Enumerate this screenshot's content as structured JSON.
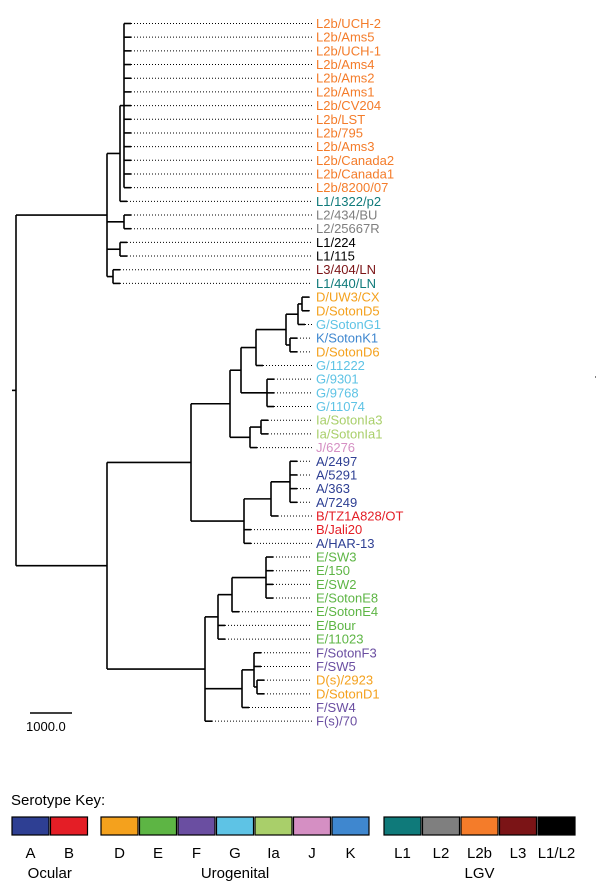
{
  "colors": {
    "A": "#2e3f93",
    "B": "#e41e26",
    "D": "#f4a11d",
    "E": "#5db544",
    "F": "#6a4ea1",
    "G": "#5ec3e5",
    "Ia": "#a9cf6a",
    "J": "#d58fc3",
    "K": "#3f87cf",
    "L1": "#0f7a7a",
    "L2": "#7f7f7f",
    "L2b": "#f47c2a",
    "L3": "#7b1416",
    "L1/L2": "#000000"
  },
  "tree": {
    "leaves": [
      {
        "label": "L2b/UCH-2",
        "serotype": "L2b"
      },
      {
        "label": "L2b/Ams5",
        "serotype": "L2b"
      },
      {
        "label": "L2b/UCH-1",
        "serotype": "L2b"
      },
      {
        "label": "L2b/Ams4",
        "serotype": "L2b"
      },
      {
        "label": "L2b/Ams2",
        "serotype": "L2b"
      },
      {
        "label": "L2b/Ams1",
        "serotype": "L2b"
      },
      {
        "label": "L2b/CV204",
        "serotype": "L2b"
      },
      {
        "label": "L2b/LST",
        "serotype": "L2b"
      },
      {
        "label": "L2b/795",
        "serotype": "L2b"
      },
      {
        "label": "L2b/Ams3",
        "serotype": "L2b"
      },
      {
        "label": "L2b/Canada2",
        "serotype": "L2b"
      },
      {
        "label": "L2b/Canada1",
        "serotype": "L2b"
      },
      {
        "label": "L2b/8200/07",
        "serotype": "L2b"
      },
      {
        "label": "L1/1322/p2",
        "serotype": "L1"
      },
      {
        "label": "L2/434/BU",
        "serotype": "L2"
      },
      {
        "label": "L2/25667R",
        "serotype": "L2"
      },
      {
        "label": "L1/224",
        "serotype": "L1/L2"
      },
      {
        "label": "L1/115",
        "serotype": "L1/L2"
      },
      {
        "label": "L3/404/LN",
        "serotype": "L3"
      },
      {
        "label": "L1/440/LN",
        "serotype": "L1"
      },
      {
        "label": "D/UW3/CX",
        "serotype": "D"
      },
      {
        "label": "D/SotonD5",
        "serotype": "D"
      },
      {
        "label": "G/SotonG1",
        "serotype": "G"
      },
      {
        "label": "K/SotonK1",
        "serotype": "K"
      },
      {
        "label": "D/SotonD6",
        "serotype": "D"
      },
      {
        "label": "G/11222",
        "serotype": "G"
      },
      {
        "label": "G/9301",
        "serotype": "G"
      },
      {
        "label": "G/9768",
        "serotype": "G"
      },
      {
        "label": "G/11074",
        "serotype": "G"
      },
      {
        "label": "Ia/SotonIa3",
        "serotype": "Ia"
      },
      {
        "label": "Ia/SotonIa1",
        "serotype": "Ia"
      },
      {
        "label": "J/6276",
        "serotype": "J"
      },
      {
        "label": "A/2497",
        "serotype": "A"
      },
      {
        "label": "A/5291",
        "serotype": "A"
      },
      {
        "label": "A/363",
        "serotype": "A"
      },
      {
        "label": "A/7249",
        "serotype": "A"
      },
      {
        "label": "B/TZ1A828/OT",
        "serotype": "B"
      },
      {
        "label": "B/Jali20",
        "serotype": "B"
      },
      {
        "label": "A/HAR-13",
        "serotype": "A"
      },
      {
        "label": "E/SW3",
        "serotype": "E"
      },
      {
        "label": "E/150",
        "serotype": "E"
      },
      {
        "label": "E/SW2",
        "serotype": "E"
      },
      {
        "label": "E/SotonE8",
        "serotype": "E"
      },
      {
        "label": "E/SotonE4",
        "serotype": "E"
      },
      {
        "label": "E/Bour",
        "serotype": "E"
      },
      {
        "label": "E/11023",
        "serotype": "E"
      },
      {
        "label": "F/SotonF3",
        "serotype": "F"
      },
      {
        "label": "F/SW5",
        "serotype": "F"
      },
      {
        "label": "D(s)/2923",
        "serotype": "D"
      },
      {
        "label": "D/SotonD1",
        "serotype": "D"
      },
      {
        "label": "F/SW4",
        "serotype": "F"
      },
      {
        "label": "F(s)/70",
        "serotype": "F"
      }
    ],
    "scale_bar_label": "1000.0"
  },
  "serotype_key": {
    "title": "Serotype Key:",
    "items": [
      {
        "letter": "A",
        "serotype": "A"
      },
      {
        "letter": "B",
        "serotype": "B"
      },
      {
        "letter": "D",
        "serotype": "D"
      },
      {
        "letter": "E",
        "serotype": "E"
      },
      {
        "letter": "F",
        "serotype": "F"
      },
      {
        "letter": "G",
        "serotype": "G"
      },
      {
        "letter": "Ia",
        "serotype": "Ia"
      },
      {
        "letter": "J",
        "serotype": "J"
      },
      {
        "letter": "K",
        "serotype": "K"
      },
      {
        "letter": "L1",
        "serotype": "L1"
      },
      {
        "letter": "L2",
        "serotype": "L2"
      },
      {
        "letter": "L2b",
        "serotype": "L2b"
      },
      {
        "letter": "L3",
        "serotype": "L3"
      },
      {
        "letter": "L1/L2",
        "serotype": "L1/L2"
      }
    ],
    "groups": [
      {
        "label": "Ocular",
        "members": [
          "A",
          "B"
        ]
      },
      {
        "label": "Urogenital",
        "members": [
          "D",
          "E",
          "F",
          "G",
          "Ia",
          "J",
          "K"
        ]
      },
      {
        "label": "LGV",
        "members": [
          "L1",
          "L2",
          "L2b",
          "L3",
          "L1/L2"
        ]
      }
    ]
  }
}
